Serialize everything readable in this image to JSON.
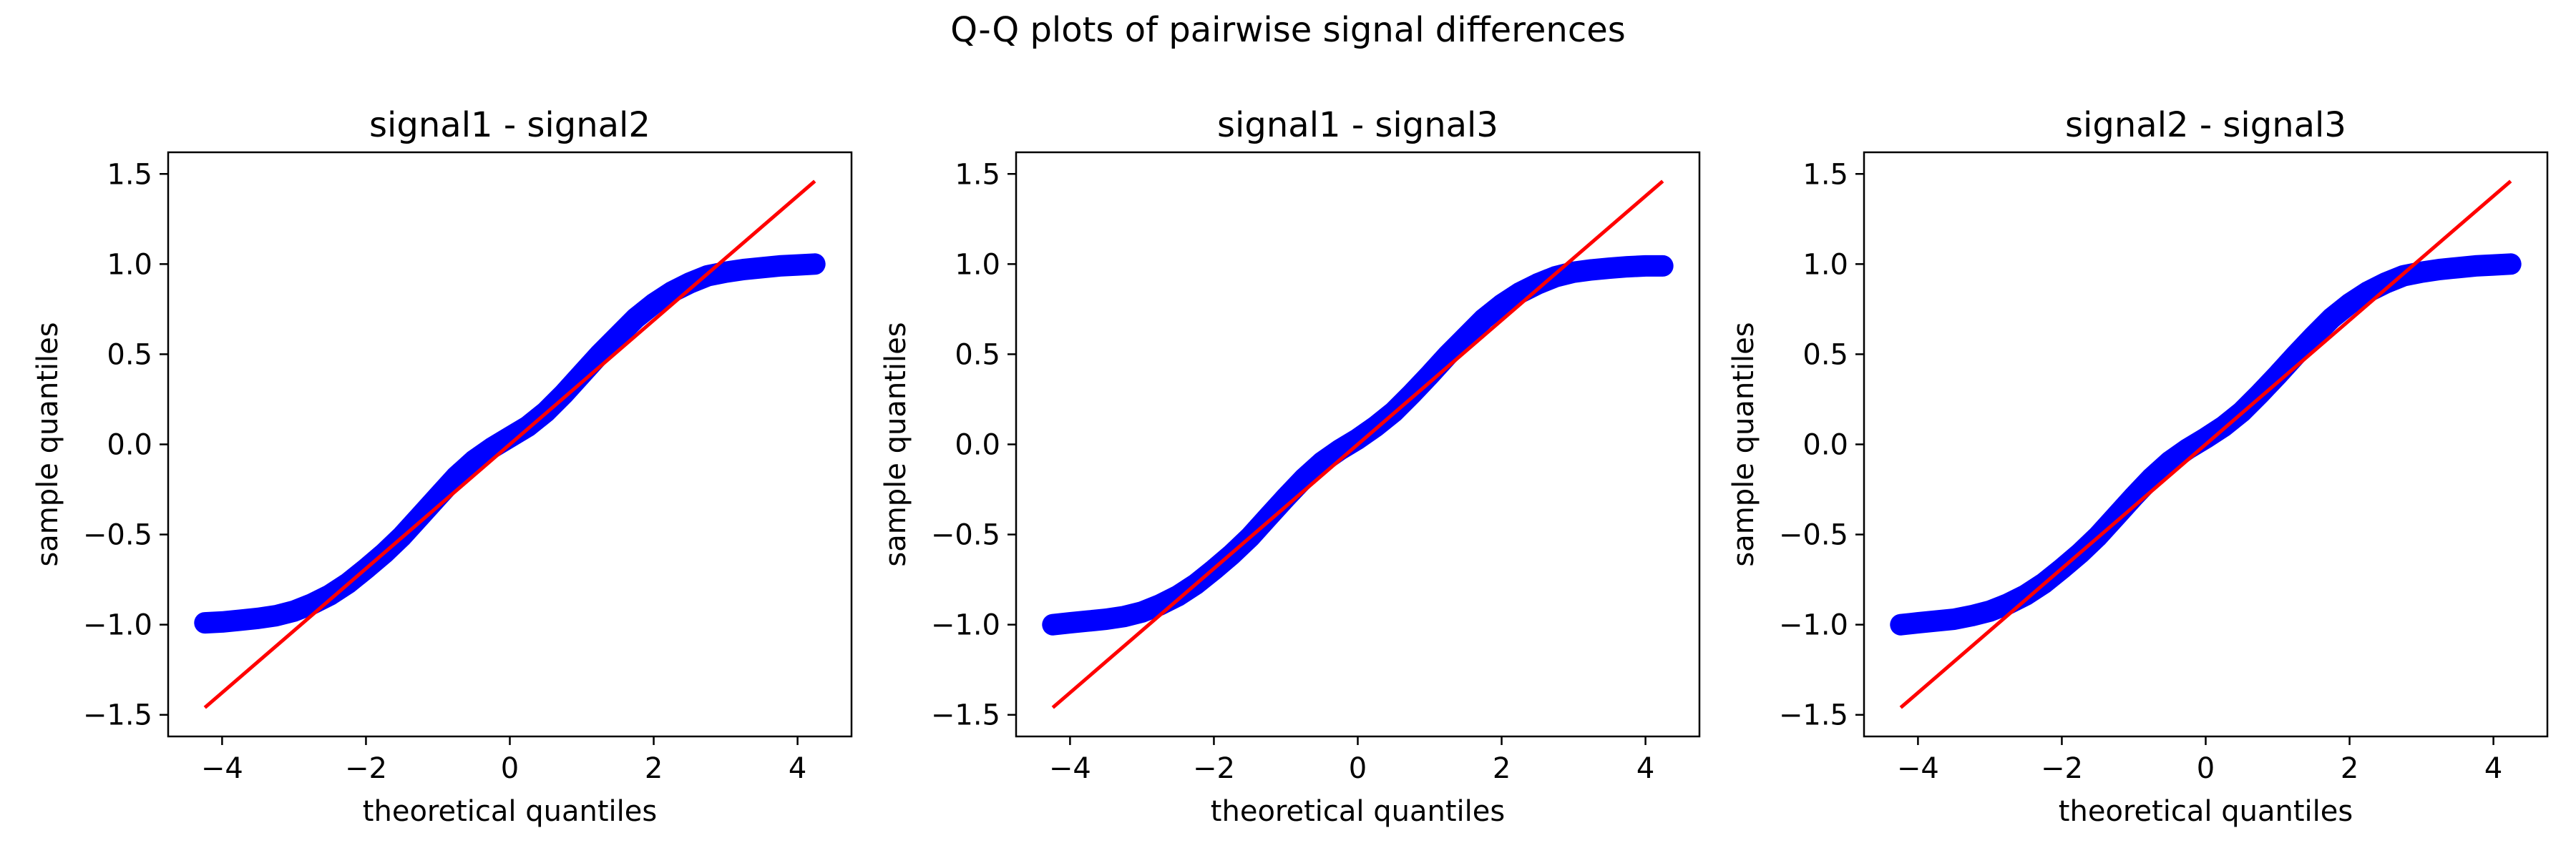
{
  "figure": {
    "title": "Q-Q plots of pairwise signal differences"
  },
  "colors": {
    "points": "#0000ff",
    "reference_line": "#ff0000",
    "axes": "#000000",
    "background": "#ffffff"
  },
  "chart_data": [
    {
      "type": "scatter",
      "title": "signal1 - signal2",
      "xlabel": "theoretical quantiles",
      "ylabel": "sample quantiles",
      "xlim": [
        -4.75,
        4.75
      ],
      "ylim": [
        -1.62,
        1.62
      ],
      "xticks": [
        -4,
        -2,
        0,
        2,
        4
      ],
      "xtick_labels": [
        "−4",
        "−2",
        "0",
        "2",
        "4"
      ],
      "yticks": [
        -1.5,
        -1.0,
        -0.5,
        0.0,
        0.5,
        1.0,
        1.5
      ],
      "ytick_labels": [
        "−1.5",
        "−1.0",
        "−0.5",
        "0.0",
        "0.5",
        "1.0",
        "1.5"
      ],
      "grid": false,
      "series": [
        {
          "kind": "markers",
          "x": [
            -4.24,
            -4.0,
            -3.75,
            -3.5,
            -3.25,
            -3.0,
            -2.75,
            -2.5,
            -2.25,
            -2.0,
            -1.75,
            -1.5,
            -1.25,
            -1.0,
            -0.75,
            -0.5,
            -0.25,
            0.0,
            0.25,
            0.5,
            0.75,
            1.0,
            1.25,
            1.5,
            1.75,
            2.0,
            2.25,
            2.5,
            2.75,
            3.0,
            3.25,
            3.5,
            3.75,
            4.0,
            4.24
          ],
          "y": [
            -0.99,
            -0.985,
            -0.975,
            -0.965,
            -0.95,
            -0.925,
            -0.885,
            -0.835,
            -0.77,
            -0.69,
            -0.605,
            -0.51,
            -0.4,
            -0.29,
            -0.18,
            -0.09,
            -0.02,
            0.04,
            0.1,
            0.18,
            0.28,
            0.39,
            0.5,
            0.6,
            0.7,
            0.78,
            0.845,
            0.895,
            0.935,
            0.955,
            0.97,
            0.98,
            0.99,
            0.995,
            1.0
          ]
        },
        {
          "kind": "line",
          "x": [
            -4.24,
            4.24
          ],
          "y": [
            -1.46,
            1.46
          ]
        }
      ]
    },
    {
      "type": "scatter",
      "title": "signal1 - signal3",
      "xlabel": "theoretical quantiles",
      "ylabel": "sample quantiles",
      "xlim": [
        -4.75,
        4.75
      ],
      "ylim": [
        -1.62,
        1.62
      ],
      "xticks": [
        -4,
        -2,
        0,
        2,
        4
      ],
      "xtick_labels": [
        "−4",
        "−2",
        "0",
        "2",
        "4"
      ],
      "yticks": [
        -1.5,
        -1.0,
        -0.5,
        0.0,
        0.5,
        1.0,
        1.5
      ],
      "ytick_labels": [
        "−1.5",
        "−1.0",
        "−0.5",
        "0.0",
        "0.5",
        "1.0",
        "1.5"
      ],
      "grid": false,
      "series": [
        {
          "kind": "markers",
          "x": [
            -4.24,
            -4.0,
            -3.75,
            -3.5,
            -3.25,
            -3.0,
            -2.75,
            -2.5,
            -2.25,
            -2.0,
            -1.75,
            -1.5,
            -1.25,
            -1.0,
            -0.75,
            -0.5,
            -0.25,
            0.0,
            0.25,
            0.5,
            0.75,
            1.0,
            1.25,
            1.5,
            1.75,
            2.0,
            2.25,
            2.5,
            2.75,
            3.0,
            3.25,
            3.5,
            3.75,
            4.0,
            4.24
          ],
          "y": [
            -1.0,
            -0.99,
            -0.98,
            -0.97,
            -0.955,
            -0.93,
            -0.89,
            -0.84,
            -0.775,
            -0.695,
            -0.61,
            -0.515,
            -0.405,
            -0.295,
            -0.19,
            -0.1,
            -0.03,
            0.03,
            0.1,
            0.18,
            0.28,
            0.385,
            0.495,
            0.595,
            0.695,
            0.775,
            0.84,
            0.89,
            0.93,
            0.955,
            0.968,
            0.977,
            0.985,
            0.99,
            0.99
          ]
        },
        {
          "kind": "line",
          "x": [
            -4.24,
            4.24
          ],
          "y": [
            -1.46,
            1.46
          ]
        }
      ]
    },
    {
      "type": "scatter",
      "title": "signal2 - signal3",
      "xlabel": "theoretical quantiles",
      "ylabel": "sample quantiles",
      "xlim": [
        -4.75,
        4.75
      ],
      "ylim": [
        -1.62,
        1.62
      ],
      "xticks": [
        -4,
        -2,
        0,
        2,
        4
      ],
      "xtick_labels": [
        "−4",
        "−2",
        "0",
        "2",
        "4"
      ],
      "yticks": [
        -1.5,
        -1.0,
        -0.5,
        0.0,
        0.5,
        1.0,
        1.5
      ],
      "ytick_labels": [
        "−1.5",
        "−1.0",
        "−0.5",
        "0.0",
        "0.5",
        "1.0",
        "1.5"
      ],
      "grid": false,
      "series": [
        {
          "kind": "markers",
          "x": [
            -4.24,
            -4.0,
            -3.75,
            -3.5,
            -3.25,
            -3.0,
            -2.75,
            -2.5,
            -2.25,
            -2.0,
            -1.75,
            -1.5,
            -1.25,
            -1.0,
            -0.75,
            -0.5,
            -0.25,
            0.0,
            0.25,
            0.5,
            0.75,
            1.0,
            1.25,
            1.5,
            1.75,
            2.0,
            2.25,
            2.5,
            2.75,
            3.0,
            3.25,
            3.5,
            3.75,
            4.0,
            4.24
          ],
          "y": [
            -1.0,
            -0.99,
            -0.98,
            -0.97,
            -0.95,
            -0.925,
            -0.885,
            -0.835,
            -0.77,
            -0.69,
            -0.605,
            -0.51,
            -0.4,
            -0.29,
            -0.185,
            -0.095,
            -0.025,
            0.035,
            0.1,
            0.18,
            0.28,
            0.385,
            0.495,
            0.6,
            0.7,
            0.78,
            0.845,
            0.895,
            0.935,
            0.955,
            0.97,
            0.98,
            0.99,
            0.995,
            1.0
          ]
        },
        {
          "kind": "line",
          "x": [
            -4.24,
            4.24
          ],
          "y": [
            -1.46,
            1.46
          ]
        }
      ]
    }
  ]
}
